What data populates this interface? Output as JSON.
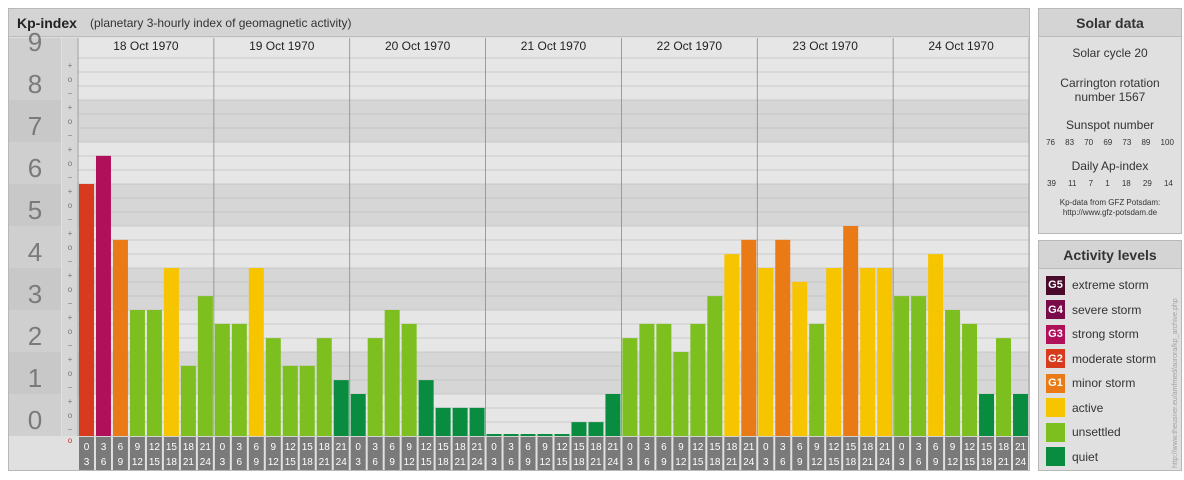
{
  "header": {
    "title": "Kp-index",
    "subtitle": "(planetary 3-hourly index of geomagnetic activity)"
  },
  "solar_data": {
    "title": "Solar data",
    "solar_cycle": "Solar cycle 20",
    "carrington_line1": "Carrington rotation",
    "carrington_line2": "number 1567",
    "sunspot_title": "Sunspot number",
    "sunspot_values": [
      "76",
      "83",
      "70",
      "69",
      "73",
      "89",
      "100"
    ],
    "ap_title": "Daily Ap-index",
    "ap_values": [
      "39",
      "11",
      "7",
      "1",
      "18",
      "29",
      "14"
    ],
    "credit_line1": "Kp-data from GFZ Potsdam:",
    "credit_line2": "http://www.gfz-potsdam.de"
  },
  "activity_levels": {
    "title": "Activity levels",
    "items": [
      {
        "code": "G5",
        "label": "extreme storm",
        "color": "#4a0a2a"
      },
      {
        "code": "G4",
        "label": "severe storm",
        "color": "#7a0a4a"
      },
      {
        "code": "G3",
        "label": "strong storm",
        "color": "#b0105a"
      },
      {
        "code": "G2",
        "label": "moderate storm",
        "color": "#d83a1e"
      },
      {
        "code": "G1",
        "label": "minor storm",
        "color": "#e97a16"
      },
      {
        "code": "",
        "label": "active",
        "color": "#f7c500"
      },
      {
        "code": "",
        "label": "unsettled",
        "color": "#7cbf1e"
      },
      {
        "code": "",
        "label": "quiet",
        "color": "#0a8c40"
      }
    ]
  },
  "watermark": "http://www.theusner.eu/amfmed/aurora/kp_archive.php",
  "chart_data": {
    "type": "bar",
    "ylim": [
      0,
      9
    ],
    "y_ticks": [
      "0",
      "1",
      "2",
      "3",
      "4",
      "5",
      "6",
      "7",
      "8",
      "9"
    ],
    "minor_marks": [
      "+",
      "o",
      "−"
    ],
    "days": [
      "18 Oct 1970",
      "19 Oct 1970",
      "20 Oct 1970",
      "21 Oct 1970",
      "22 Oct 1970",
      "23 Oct 1970",
      "24 Oct 1970"
    ],
    "interval_starts": [
      "0",
      "3",
      "6",
      "9",
      "12",
      "15",
      "18",
      "21"
    ],
    "interval_ends": [
      "3",
      "6",
      "9",
      "12",
      "15",
      "18",
      "21",
      "24"
    ],
    "values": [
      [
        6.0,
        6.67,
        4.67,
        3.0,
        3.0,
        4.0,
        1.67,
        3.33
      ],
      [
        2.67,
        2.67,
        4.0,
        2.33,
        1.67,
        1.67,
        2.33,
        1.33
      ],
      [
        1.0,
        2.33,
        3.0,
        2.67,
        1.33,
        0.67,
        0.67,
        0.67
      ],
      [
        0.0,
        0.0,
        0.0,
        0.0,
        0.0,
        0.33,
        0.33,
        1.0
      ],
      [
        2.33,
        2.67,
        2.67,
        2.0,
        2.67,
        3.33,
        4.33,
        4.67
      ],
      [
        4.0,
        4.67,
        3.67,
        2.67,
        4.0,
        5.0,
        4.0,
        4.0
      ],
      [
        3.33,
        3.33,
        4.33,
        3.0,
        2.67,
        1.0,
        2.33,
        1.0
      ]
    ]
  }
}
